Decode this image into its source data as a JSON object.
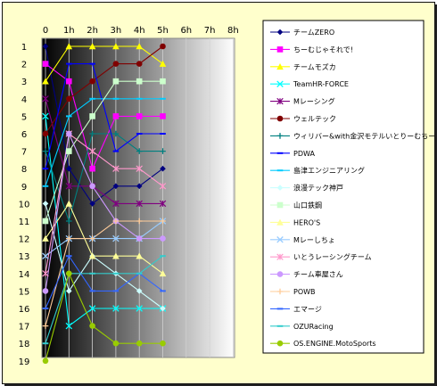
{
  "chart_data": {
    "type": "line",
    "x_categories": [
      "0",
      "1h",
      "2h",
      "3h",
      "4h",
      "5h",
      "6h",
      "7h",
      "8h"
    ],
    "y_ticks": [
      "1",
      "2",
      "3",
      "4",
      "5",
      "6",
      "7",
      "8",
      "9",
      "10",
      "11",
      "12",
      "13",
      "14",
      "15",
      "16",
      "17",
      "18",
      "19"
    ],
    "y_axis": {
      "range": [
        1,
        19
      ],
      "reversed": true
    },
    "grid": {
      "vertical": true,
      "horizontal": false
    },
    "legend_position": "right",
    "background": "black-to-white gradient",
    "series": [
      {
        "name": "チームZERO",
        "color": "#000080",
        "marker": "diamond",
        "values": [
          1,
          8,
          10,
          9,
          9,
          8
        ]
      },
      {
        "name": "ちーむじゃそれで!",
        "color": "#ff00ff",
        "marker": "square",
        "values": [
          2,
          3,
          8,
          5,
          5,
          5
        ]
      },
      {
        "name": "チームモズカ",
        "color": "#ffff00",
        "marker": "triangle",
        "values": [
          3,
          1,
          1,
          1,
          1,
          2
        ]
      },
      {
        "name": "TeamHR-FORCE",
        "color": "#00ffff",
        "marker": "x",
        "values": [
          5,
          17,
          16,
          16,
          16,
          16
        ]
      },
      {
        "name": "Mレーシング",
        "color": "#800080",
        "marker": "star",
        "values": [
          4,
          9,
          9,
          10,
          10,
          10
        ]
      },
      {
        "name": "ウェルテック",
        "color": "#800000",
        "marker": "circle",
        "values": [
          6,
          4,
          3,
          2,
          2,
          1
        ]
      },
      {
        "name": "ウィリバー&with金沢モテルいとりーむちーむ!",
        "color": "#008080",
        "marker": "plus",
        "values": [
          7,
          11,
          6,
          6,
          7,
          7
        ]
      },
      {
        "name": "PDWA",
        "color": "#0000ff",
        "marker": "dash",
        "values": [
          8,
          2,
          2,
          7,
          6,
          6
        ]
      },
      {
        "name": "島津エンジニアリング",
        "color": "#00ccff",
        "marker": "dash",
        "values": [
          9,
          5,
          4,
          4,
          4,
          4
        ]
      },
      {
        "name": "浪漫テック神戸",
        "color": "#ccffff",
        "marker": "diamond",
        "values": [
          10,
          15,
          13,
          14,
          15,
          16
        ]
      },
      {
        "name": "山口鉄鋼",
        "color": "#ccffcc",
        "marker": "square",
        "values": [
          11,
          7,
          5,
          3,
          3,
          3
        ]
      },
      {
        "name": "HERO'S",
        "color": "#ffff99",
        "marker": "triangle",
        "values": [
          12,
          10,
          13,
          13,
          13,
          14
        ]
      },
      {
        "name": "Mレーしちょ",
        "color": "#99ccff",
        "marker": "x",
        "values": [
          13,
          12,
          12,
          12,
          12,
          11
        ]
      },
      {
        "name": "いとうレーシングチーム",
        "color": "#ff99cc",
        "marker": "star",
        "values": [
          14,
          6,
          7,
          8,
          8,
          9
        ]
      },
      {
        "name": "チーム車屋さん",
        "color": "#cc99ff",
        "marker": "circle",
        "values": [
          15,
          6,
          9,
          11,
          12,
          12
        ]
      },
      {
        "name": "POWB",
        "color": "#ffcc99",
        "marker": "plus",
        "values": [
          17,
          12,
          12,
          11,
          11,
          11
        ]
      },
      {
        "name": "エマージ",
        "color": "#3366ff",
        "marker": "dash",
        "values": [
          16,
          13,
          15,
          15,
          14,
          15
        ]
      },
      {
        "name": "OZURacing",
        "color": "#33cccc",
        "marker": "dash",
        "values": [
          18,
          14,
          14,
          14,
          14,
          13
        ]
      },
      {
        "name": "OS.ENGINE.MotoSports",
        "color": "#99cc00",
        "marker": "circle",
        "values": [
          19,
          14,
          17,
          18,
          18,
          18
        ]
      }
    ]
  }
}
